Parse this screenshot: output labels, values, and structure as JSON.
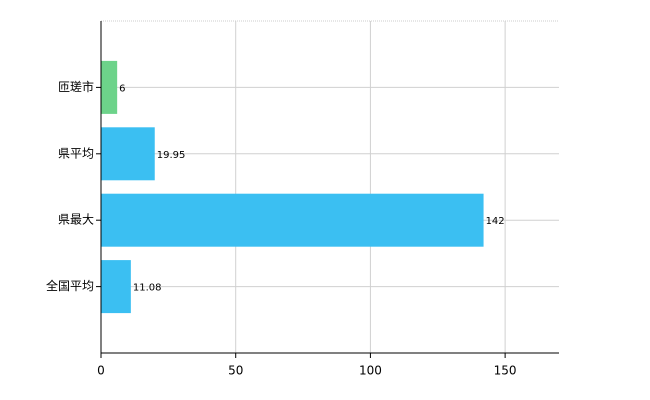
{
  "chart_data": {
    "type": "hbar",
    "categories": [
      "匝瑳市",
      "県平均",
      "県最大",
      "全国平均"
    ],
    "values": [
      6,
      19.95,
      142,
      11.08
    ],
    "colors": [
      "#6dd38a",
      "#3bbff2",
      "#3bbff2",
      "#3bbff2"
    ],
    "xlim": [
      0,
      170
    ],
    "xticks": [
      0,
      50,
      100,
      150
    ],
    "grid": true
  }
}
